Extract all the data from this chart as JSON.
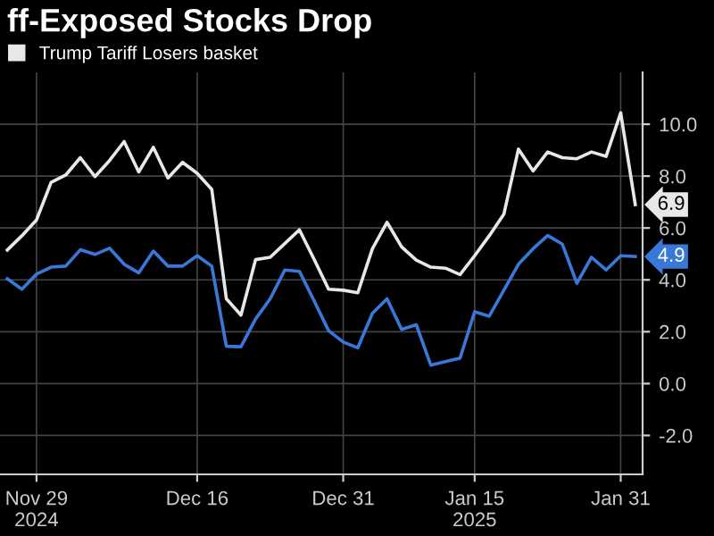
{
  "chart_data": {
    "type": "line",
    "title": "ff-Exposed Stocks Drop",
    "categories": [
      null,
      null,
      "Nov 29\n2024",
      null,
      null,
      null,
      null,
      null,
      null,
      null,
      null,
      null,
      null,
      "Dec 16",
      null,
      null,
      null,
      null,
      null,
      null,
      null,
      null,
      null,
      "Dec 31",
      null,
      null,
      null,
      null,
      null,
      null,
      null,
      null,
      "Jan 15\n2025",
      null,
      null,
      null,
      null,
      null,
      null,
      null,
      null,
      null,
      "Jan 31",
      null
    ],
    "series": [
      {
        "name": "Trump Tariff Losers basket",
        "color": "#e8e8e8",
        "values": [
          5.15,
          5.7,
          6.31,
          7.76,
          8.04,
          8.71,
          7.98,
          8.6,
          9.33,
          8.16,
          9.11,
          7.93,
          8.53,
          8.11,
          7.49,
          3.27,
          2.64,
          4.78,
          4.87,
          5.4,
          5.93,
          4.8,
          3.64,
          3.6,
          3.5,
          5.2,
          6.22,
          5.27,
          4.76,
          4.49,
          4.45,
          4.2,
          4.93,
          5.7,
          6.53,
          9.04,
          8.2,
          8.93,
          8.71,
          8.67,
          8.93,
          8.76,
          10.44,
          6.9
        ],
        "value_labels": [
          null,
          null,
          null,
          null,
          null,
          null,
          null,
          null,
          null,
          null,
          null,
          null,
          null,
          null,
          null,
          null,
          null,
          null,
          null,
          null,
          null,
          null,
          null,
          null,
          null,
          null,
          null,
          null,
          null,
          null,
          null,
          null,
          null,
          null,
          null,
          null,
          null,
          null,
          null,
          null,
          null,
          null,
          null,
          "6.9"
        ]
      },
      {
        "color": "#3a78d8",
        "values": [
          4.04,
          3.64,
          4.22,
          4.49,
          4.53,
          5.16,
          4.98,
          5.22,
          4.6,
          4.27,
          5.11,
          4.53,
          4.53,
          4.93,
          4.53,
          1.44,
          1.42,
          2.49,
          3.27,
          4.38,
          4.33,
          3.2,
          2.04,
          1.6,
          1.38,
          2.71,
          3.27,
          2.09,
          2.27,
          0.71,
          0.85,
          0.98,
          2.77,
          2.6,
          3.6,
          4.6,
          5.2,
          5.71,
          5.38,
          3.87,
          4.87,
          4.38,
          4.93,
          4.9
        ],
        "value_labels": [
          null,
          null,
          null,
          null,
          null,
          null,
          null,
          null,
          null,
          null,
          null,
          null,
          null,
          null,
          null,
          null,
          null,
          null,
          null,
          null,
          null,
          null,
          null,
          null,
          null,
          null,
          null,
          null,
          null,
          null,
          null,
          null,
          null,
          null,
          null,
          null,
          null,
          null,
          null,
          null,
          null,
          null,
          null,
          "4.9"
        ]
      }
    ],
    "ylim": [
      -3.5,
      12
    ],
    "yticks": [
      {
        "value": -2,
        "label": "-2.0"
      },
      {
        "value": 0,
        "label": "0.0"
      },
      {
        "value": 2,
        "label": "2.0"
      },
      {
        "value": 4,
        "label": "4.0"
      },
      {
        "value": 6,
        "label": "6.0"
      },
      {
        "value": 8,
        "label": "8.0"
      },
      {
        "value": 10,
        "label": "10.0"
      }
    ],
    "grid": true,
    "legend": "top left",
    "marker": "none",
    "line_style": "solid"
  }
}
